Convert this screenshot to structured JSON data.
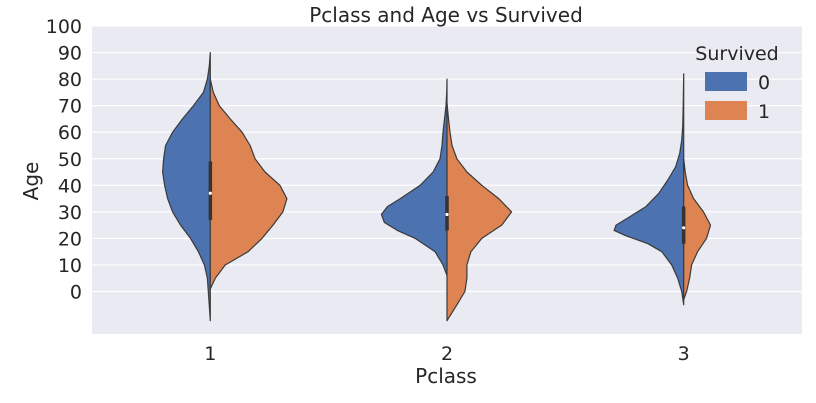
{
  "chart_data": {
    "type": "violin",
    "title": "Pclass and Age vs Survived",
    "xlabel": "Pclass",
    "ylabel": "Age",
    "categories": [
      "1",
      "2",
      "3"
    ],
    "y_ticks": [
      0,
      10,
      20,
      30,
      40,
      50,
      60,
      70,
      80,
      90,
      100
    ],
    "ylim": [
      -16,
      100
    ],
    "grid": true,
    "legend": {
      "title": "Survived",
      "placement": "top-right",
      "entries": [
        "0",
        "1"
      ]
    },
    "colors": {
      "0": "#4c72b0",
      "1": "#dd8452",
      "background": "#eaeaf2",
      "grid": "#ffffff",
      "outline": "#3a3a3a",
      "inner": "#333333"
    },
    "max_density_width": 0.42,
    "series": [
      {
        "name": "0",
        "side": "left",
        "violins": [
          {
            "category": "1",
            "min": -11,
            "max": 90,
            "q1": 27,
            "median": 37,
            "q3": 49,
            "density_profile": [
              [
                -11,
                0.0
              ],
              [
                0,
                0.02
              ],
              [
                5,
                0.03
              ],
              [
                10,
                0.06
              ],
              [
                15,
                0.12
              ],
              [
                20,
                0.2
              ],
              [
                25,
                0.3
              ],
              [
                30,
                0.38
              ],
              [
                35,
                0.43
              ],
              [
                40,
                0.46
              ],
              [
                45,
                0.48
              ],
              [
                50,
                0.47
              ],
              [
                55,
                0.45
              ],
              [
                60,
                0.38
              ],
              [
                65,
                0.28
              ],
              [
                70,
                0.17
              ],
              [
                75,
                0.07
              ],
              [
                80,
                0.03
              ],
              [
                85,
                0.01
              ],
              [
                90,
                0.0
              ]
            ]
          },
          {
            "category": "2",
            "min": 6,
            "max": 80,
            "q1": 23,
            "median": 29,
            "q3": 36,
            "density_profile": [
              [
                6,
                0.0
              ],
              [
                10,
                0.04
              ],
              [
                15,
                0.12
              ],
              [
                20,
                0.32
              ],
              [
                23,
                0.5
              ],
              [
                26,
                0.63
              ],
              [
                29,
                0.66
              ],
              [
                32,
                0.6
              ],
              [
                35,
                0.47
              ],
              [
                40,
                0.27
              ],
              [
                45,
                0.14
              ],
              [
                50,
                0.07
              ],
              [
                55,
                0.05
              ],
              [
                60,
                0.04
              ],
              [
                65,
                0.025
              ],
              [
                70,
                0.01
              ],
              [
                75,
                0.003
              ],
              [
                80,
                0.0
              ]
            ]
          },
          {
            "category": "3",
            "min": -5,
            "max": 82,
            "q1": 18,
            "median": 24,
            "q3": 32,
            "density_profile": [
              [
                -5,
                0.0
              ],
              [
                0,
                0.02
              ],
              [
                5,
                0.06
              ],
              [
                10,
                0.12
              ],
              [
                15,
                0.22
              ],
              [
                18,
                0.36
              ],
              [
                21,
                0.58
              ],
              [
                23,
                0.7
              ],
              [
                25,
                0.68
              ],
              [
                28,
                0.55
              ],
              [
                32,
                0.38
              ],
              [
                37,
                0.25
              ],
              [
                42,
                0.16
              ],
              [
                47,
                0.08
              ],
              [
                52,
                0.04
              ],
              [
                57,
                0.02
              ],
              [
                62,
                0.01
              ],
              [
                70,
                0.005
              ],
              [
                82,
                0.0
              ]
            ]
          }
        ]
      },
      {
        "name": "1",
        "side": "right",
        "violins": [
          {
            "category": "1",
            "min": 1,
            "max": 80,
            "q1": 27,
            "median": 37,
            "q3": 49,
            "density_profile": [
              [
                1,
                0.0
              ],
              [
                5,
                0.05
              ],
              [
                10,
                0.15
              ],
              [
                15,
                0.38
              ],
              [
                20,
                0.52
              ],
              [
                25,
                0.63
              ],
              [
                30,
                0.73
              ],
              [
                35,
                0.77
              ],
              [
                40,
                0.7
              ],
              [
                45,
                0.55
              ],
              [
                50,
                0.45
              ],
              [
                55,
                0.4
              ],
              [
                60,
                0.32
              ],
              [
                65,
                0.2
              ],
              [
                70,
                0.09
              ],
              [
                75,
                0.03
              ],
              [
                80,
                0.0
              ]
            ]
          },
          {
            "category": "2",
            "min": -11,
            "max": 71,
            "q1": 23,
            "median": 29,
            "q3": 36,
            "density_profile": [
              [
                -11,
                0.0
              ],
              [
                -5,
                0.1
              ],
              [
                0,
                0.18
              ],
              [
                5,
                0.2
              ],
              [
                10,
                0.2
              ],
              [
                15,
                0.24
              ],
              [
                20,
                0.35
              ],
              [
                25,
                0.55
              ],
              [
                30,
                0.65
              ],
              [
                35,
                0.52
              ],
              [
                40,
                0.35
              ],
              [
                45,
                0.2
              ],
              [
                50,
                0.1
              ],
              [
                55,
                0.05
              ],
              [
                60,
                0.03
              ],
              [
                65,
                0.015
              ],
              [
                71,
                0.0
              ]
            ]
          },
          {
            "category": "3",
            "min": -3,
            "max": 50,
            "q1": 18,
            "median": 24,
            "q3": 32,
            "density_profile": [
              [
                -3,
                0.0
              ],
              [
                0,
                0.03
              ],
              [
                5,
                0.06
              ],
              [
                10,
                0.08
              ],
              [
                15,
                0.14
              ],
              [
                20,
                0.23
              ],
              [
                25,
                0.27
              ],
              [
                30,
                0.2
              ],
              [
                35,
                0.1
              ],
              [
                40,
                0.04
              ],
              [
                45,
                0.015
              ],
              [
                50,
                0.0
              ]
            ]
          }
        ]
      }
    ]
  }
}
